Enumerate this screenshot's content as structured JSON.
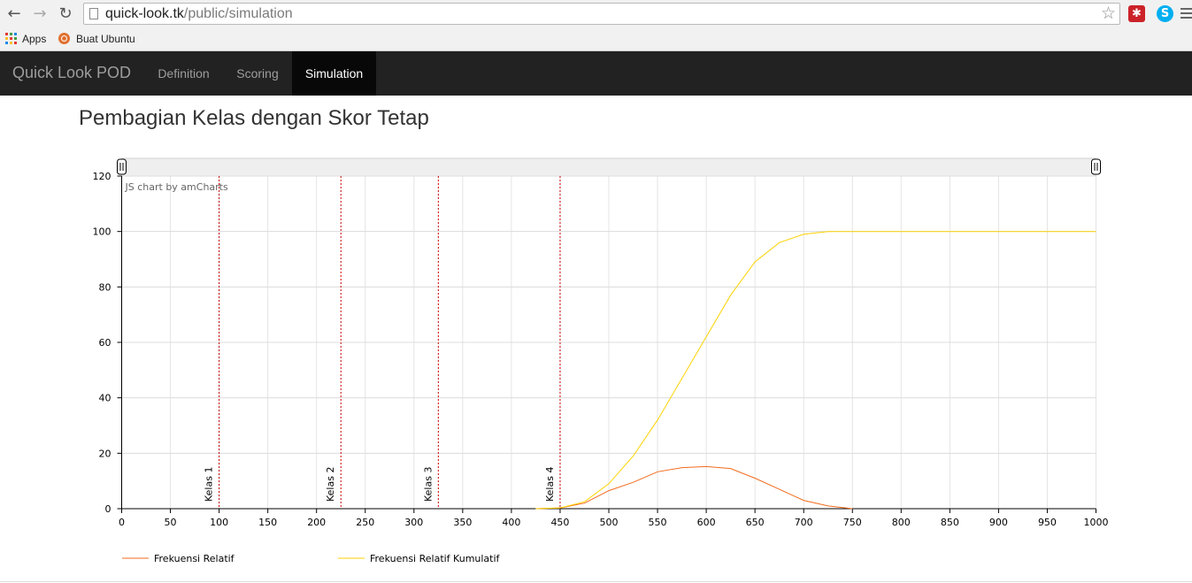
{
  "browser": {
    "url_host": "quick-look.tk",
    "url_path": "/public/simulation",
    "bookmarks": [
      {
        "label": "Apps",
        "icon": "apps-grid-icon"
      },
      {
        "label": "Buat Ubuntu",
        "icon": "ubuntu-icon"
      }
    ],
    "extensions": [
      {
        "name": "lastpass-icon",
        "glyph": "✱",
        "color": "#cc2229"
      },
      {
        "name": "skype-icon",
        "glyph": "S",
        "color": "#00aff0"
      }
    ]
  },
  "navbar": {
    "brand": "Quick Look POD",
    "items": [
      {
        "label": "Definition",
        "active": false
      },
      {
        "label": "Scoring",
        "active": false
      },
      {
        "label": "Simulation",
        "active": true
      }
    ]
  },
  "page": {
    "title": "Pembagian Kelas dengan Skor Tetap"
  },
  "chart_data": {
    "type": "line",
    "credit": "JS chart by amCharts",
    "xlim": [
      0,
      1000
    ],
    "ylim": [
      0,
      120
    ],
    "x_ticks": [
      0,
      50,
      100,
      150,
      200,
      250,
      300,
      350,
      400,
      450,
      500,
      550,
      600,
      650,
      700,
      750,
      800,
      850,
      900,
      950,
      1000
    ],
    "y_ticks": [
      0,
      20,
      40,
      60,
      80,
      100,
      120
    ],
    "grid": true,
    "legend_position": "bottom-left",
    "scrollbar": true,
    "guides": [
      {
        "label": "Kelas 1",
        "x": 100
      },
      {
        "label": "Kelas 2",
        "x": 225
      },
      {
        "label": "Kelas 3",
        "x": 325
      },
      {
        "label": "Kelas 4",
        "x": 450
      }
    ],
    "series": [
      {
        "name": "Frekuensi Relatif",
        "color": "#f26b1d",
        "x": [
          425,
          450,
          475,
          500,
          525,
          550,
          575,
          600,
          625,
          650,
          675,
          700,
          725,
          750
        ],
        "values": [
          0,
          0.3,
          2,
          6.5,
          9.5,
          13.3,
          14.8,
          15.2,
          14.5,
          11,
          7,
          3,
          1,
          0
        ]
      },
      {
        "name": "Frekuensi Relatif Kumulatif",
        "color": "#fcd202",
        "x": [
          425,
          450,
          475,
          500,
          525,
          550,
          575,
          600,
          625,
          650,
          675,
          700,
          725,
          750,
          1000
        ],
        "values": [
          0,
          0.3,
          2.5,
          9,
          19,
          32,
          47,
          62,
          77,
          89,
          96,
          99,
          100,
          100,
          100
        ]
      }
    ]
  }
}
